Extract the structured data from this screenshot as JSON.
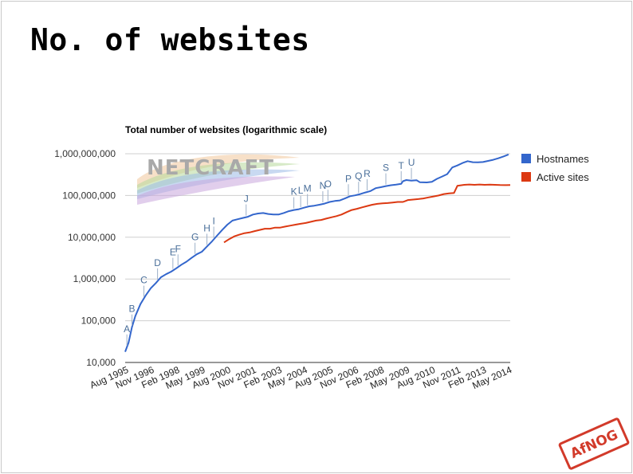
{
  "slide": {
    "title": "No. of websites"
  },
  "chart_data": {
    "type": "line",
    "title": "Total number of websites (logarithmic scale)",
    "scale": "log",
    "ylim": [
      10000,
      1000000000
    ],
    "y_ticks": [
      {
        "value": 10000,
        "label": "10,000"
      },
      {
        "value": 100000,
        "label": "100,000"
      },
      {
        "value": 1000000,
        "label": "1,000,000"
      },
      {
        "value": 10000000,
        "label": "10,000,000"
      },
      {
        "value": 100000000,
        "label": "100,000,000"
      },
      {
        "value": 1000000000,
        "label": "1,000,000,000"
      }
    ],
    "xlim": [
      "1995-08",
      "2014-06"
    ],
    "x_ticks": [
      {
        "date": "1995-08",
        "label": "Aug 1995"
      },
      {
        "date": "1996-11",
        "label": "Nov 1996"
      },
      {
        "date": "1998-02",
        "label": "Feb 1998"
      },
      {
        "date": "1999-05",
        "label": "May 1999"
      },
      {
        "date": "2000-08",
        "label": "Aug 2000"
      },
      {
        "date": "2001-11",
        "label": "Nov 2001"
      },
      {
        "date": "2003-02",
        "label": "Feb 2003"
      },
      {
        "date": "2004-05",
        "label": "May 2004"
      },
      {
        "date": "2005-08",
        "label": "Aug 2005"
      },
      {
        "date": "2006-11",
        "label": "Nov 2006"
      },
      {
        "date": "2008-02",
        "label": "Feb 2008"
      },
      {
        "date": "2009-05",
        "label": "May 2009"
      },
      {
        "date": "2010-08",
        "label": "Aug 2010"
      },
      {
        "date": "2011-11",
        "label": "Nov 2011"
      },
      {
        "date": "2013-02",
        "label": "Feb 2013"
      },
      {
        "date": "2014-05",
        "label": "May 2014"
      }
    ],
    "legend_position": "right",
    "series": [
      {
        "name": "Hostnames",
        "color": "#3366cc",
        "points": [
          [
            "1995-08",
            18000
          ],
          [
            "1995-10",
            30000
          ],
          [
            "1995-12",
            70000
          ],
          [
            "1996-02",
            130000
          ],
          [
            "1996-05",
            250000
          ],
          [
            "1996-08",
            400000
          ],
          [
            "1996-11",
            600000
          ],
          [
            "1997-02",
            800000
          ],
          [
            "1997-05",
            1100000
          ],
          [
            "1997-08",
            1300000
          ],
          [
            "1997-11",
            1500000
          ],
          [
            "1998-02",
            1800000
          ],
          [
            "1998-05",
            2200000
          ],
          [
            "1998-08",
            2600000
          ],
          [
            "1998-11",
            3200000
          ],
          [
            "1999-02",
            3900000
          ],
          [
            "1999-05",
            4500000
          ],
          [
            "1999-08",
            6000000
          ],
          [
            "1999-11",
            8000000
          ],
          [
            "2000-02",
            11000000
          ],
          [
            "2000-05",
            15000000
          ],
          [
            "2000-08",
            20000000
          ],
          [
            "2000-11",
            25000000
          ],
          [
            "2001-02",
            27000000
          ],
          [
            "2001-05",
            29000000
          ],
          [
            "2001-08",
            31000000
          ],
          [
            "2001-11",
            35000000
          ],
          [
            "2002-02",
            37000000
          ],
          [
            "2002-05",
            38000000
          ],
          [
            "2002-08",
            36000000
          ],
          [
            "2002-11",
            35000000
          ],
          [
            "2003-02",
            35000000
          ],
          [
            "2003-05",
            38000000
          ],
          [
            "2003-08",
            42000000
          ],
          [
            "2003-11",
            45000000
          ],
          [
            "2004-02",
            47000000
          ],
          [
            "2004-05",
            51000000
          ],
          [
            "2004-08",
            55000000
          ],
          [
            "2004-11",
            57000000
          ],
          [
            "2005-02",
            60000000
          ],
          [
            "2005-05",
            64000000
          ],
          [
            "2005-08",
            70000000
          ],
          [
            "2005-11",
            74000000
          ],
          [
            "2006-02",
            76000000
          ],
          [
            "2006-05",
            85000000
          ],
          [
            "2006-08",
            96000000
          ],
          [
            "2006-11",
            101000000
          ],
          [
            "2007-02",
            108000000
          ],
          [
            "2007-05",
            118000000
          ],
          [
            "2007-08",
            128000000
          ],
          [
            "2007-11",
            150000000
          ],
          [
            "2008-02",
            158000000
          ],
          [
            "2008-05",
            168000000
          ],
          [
            "2008-08",
            176000000
          ],
          [
            "2008-11",
            182000000
          ],
          [
            "2009-02",
            190000000
          ],
          [
            "2009-03",
            220000000
          ],
          [
            "2009-05",
            235000000
          ],
          [
            "2009-08",
            226000000
          ],
          [
            "2009-11",
            233000000
          ],
          [
            "2010-01",
            207000000
          ],
          [
            "2010-05",
            206000000
          ],
          [
            "2010-08",
            213000000
          ],
          [
            "2010-11",
            250000000
          ],
          [
            "2011-02",
            285000000
          ],
          [
            "2011-05",
            325000000
          ],
          [
            "2011-08",
            470000000
          ],
          [
            "2011-11",
            525000000
          ],
          [
            "2012-02",
            600000000
          ],
          [
            "2012-05",
            665000000
          ],
          [
            "2012-08",
            628000000
          ],
          [
            "2012-11",
            624000000
          ],
          [
            "2013-02",
            632000000
          ],
          [
            "2013-05",
            672000000
          ],
          [
            "2013-08",
            716000000
          ],
          [
            "2013-11",
            780000000
          ],
          [
            "2014-02",
            860000000
          ],
          [
            "2014-05",
            960000000
          ]
        ]
      },
      {
        "name": "Active sites",
        "color": "#dc3912",
        "points": [
          [
            "2000-06",
            7500000
          ],
          [
            "2000-09",
            9000000
          ],
          [
            "2000-12",
            10500000
          ],
          [
            "2001-03",
            11500000
          ],
          [
            "2001-06",
            12500000
          ],
          [
            "2001-09",
            13000000
          ],
          [
            "2001-12",
            14000000
          ],
          [
            "2002-03",
            15000000
          ],
          [
            "2002-06",
            16000000
          ],
          [
            "2002-09",
            16000000
          ],
          [
            "2002-12",
            17000000
          ],
          [
            "2003-03",
            17000000
          ],
          [
            "2003-06",
            18000000
          ],
          [
            "2003-09",
            19000000
          ],
          [
            "2003-12",
            20000000
          ],
          [
            "2004-03",
            21000000
          ],
          [
            "2004-06",
            22000000
          ],
          [
            "2004-09",
            23500000
          ],
          [
            "2004-12",
            25000000
          ],
          [
            "2005-03",
            26000000
          ],
          [
            "2005-06",
            28000000
          ],
          [
            "2005-09",
            30000000
          ],
          [
            "2005-12",
            32000000
          ],
          [
            "2006-03",
            35000000
          ],
          [
            "2006-06",
            40000000
          ],
          [
            "2006-09",
            45000000
          ],
          [
            "2006-12",
            48000000
          ],
          [
            "2007-03",
            52000000
          ],
          [
            "2007-06",
            56000000
          ],
          [
            "2007-09",
            60000000
          ],
          [
            "2007-12",
            63000000
          ],
          [
            "2008-03",
            65000000
          ],
          [
            "2008-06",
            66000000
          ],
          [
            "2008-09",
            68000000
          ],
          [
            "2008-12",
            70000000
          ],
          [
            "2009-03",
            70000000
          ],
          [
            "2009-06",
            78000000
          ],
          [
            "2009-09",
            80000000
          ],
          [
            "2009-12",
            82000000
          ],
          [
            "2010-03",
            85000000
          ],
          [
            "2010-06",
            90000000
          ],
          [
            "2010-09",
            95000000
          ],
          [
            "2010-12",
            100000000
          ],
          [
            "2011-03",
            108000000
          ],
          [
            "2011-06",
            112000000
          ],
          [
            "2011-09",
            115000000
          ],
          [
            "2011-11",
            170000000
          ],
          [
            "2012-03",
            180000000
          ],
          [
            "2012-06",
            183000000
          ],
          [
            "2012-09",
            180000000
          ],
          [
            "2012-12",
            183000000
          ],
          [
            "2013-03",
            180000000
          ],
          [
            "2013-06",
            182000000
          ],
          [
            "2013-09",
            180000000
          ],
          [
            "2013-12",
            178000000
          ],
          [
            "2014-03",
            177000000
          ],
          [
            "2014-06",
            178000000
          ]
        ]
      }
    ],
    "annotations": [
      {
        "label": "A",
        "date": "1995-09"
      },
      {
        "label": "B",
        "date": "1995-12"
      },
      {
        "label": "C",
        "date": "1996-07"
      },
      {
        "label": "D",
        "date": "1997-03"
      },
      {
        "label": "E",
        "date": "1997-12"
      },
      {
        "label": "F",
        "date": "1998-03"
      },
      {
        "label": "G",
        "date": "1999-01"
      },
      {
        "label": "H",
        "date": "1999-08"
      },
      {
        "label": "I",
        "date": "1999-12"
      },
      {
        "label": "J",
        "date": "2001-07"
      },
      {
        "label": "K",
        "date": "2003-11"
      },
      {
        "label": "L",
        "date": "2004-03"
      },
      {
        "label": "M",
        "date": "2004-07"
      },
      {
        "label": "N",
        "date": "2005-04"
      },
      {
        "label": "O",
        "date": "2005-07"
      },
      {
        "label": "P",
        "date": "2006-07"
      },
      {
        "label": "Q",
        "date": "2007-01"
      },
      {
        "label": "R",
        "date": "2007-06"
      },
      {
        "label": "S",
        "date": "2008-05"
      },
      {
        "label": "T",
        "date": "2009-02"
      },
      {
        "label": "U",
        "date": "2009-08"
      }
    ]
  },
  "logos": {
    "netcraft": "NETCRAFT",
    "afnog": "AfNOG"
  }
}
